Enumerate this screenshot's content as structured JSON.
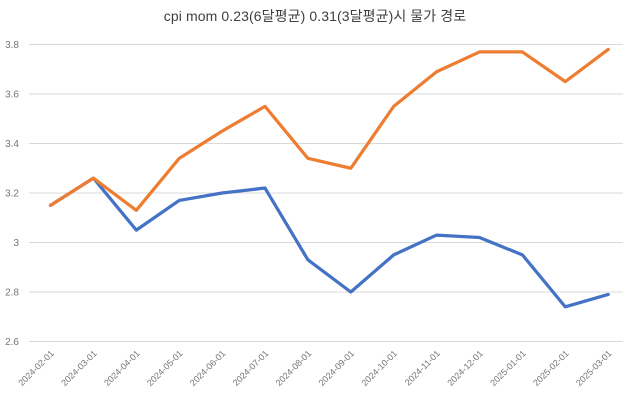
{
  "title": "cpi mom 0.23(6달평균) 0.31(3달평균)시 물가 경로",
  "colors": {
    "series_blue": "#4472C4",
    "series_orange": "#ED7D31",
    "gridline": "#D9D9D9",
    "axis_label": "#757575",
    "title": "#3F3F3F",
    "background": "#FFFFFF"
  },
  "chart_data": {
    "type": "line",
    "title": "cpi mom 0.23(6달평균) 0.31(3달평균)시 물가 경로",
    "categories": [
      "2024-02-01",
      "2024-03-01",
      "2024-04-01",
      "2024-05-01",
      "2024-06-01",
      "2024-07-01",
      "2024-08-01",
      "2024-09-01",
      "2024-10-01",
      "2024-11-01",
      "2024-12-01",
      "2025-01-01",
      "2025-02-01",
      "2025-03-01"
    ],
    "series": [
      {
        "name": "0.23(6달평균)",
        "color": "#4472C4",
        "values": [
          3.15,
          3.26,
          3.05,
          3.17,
          3.2,
          3.22,
          2.93,
          2.8,
          2.95,
          3.03,
          3.02,
          2.95,
          2.74,
          2.79
        ]
      },
      {
        "name": "0.31(3달평균)",
        "color": "#ED7D31",
        "values": [
          3.15,
          3.26,
          3.13,
          3.34,
          3.45,
          3.55,
          3.34,
          3.3,
          3.55,
          3.69,
          3.77,
          3.77,
          3.65,
          3.78
        ]
      }
    ],
    "xlabel": "",
    "ylabel": "",
    "ylim": [
      2.6,
      3.8
    ],
    "ytick_values": [
      2.6,
      2.8,
      3.0,
      3.2,
      3.4,
      3.6,
      3.8
    ],
    "ytick_labels": [
      "2.6",
      "2.8",
      "3",
      "3.2",
      "3.4",
      "3.6",
      "3.8"
    ],
    "grid": "horizontal",
    "legend": "none"
  }
}
